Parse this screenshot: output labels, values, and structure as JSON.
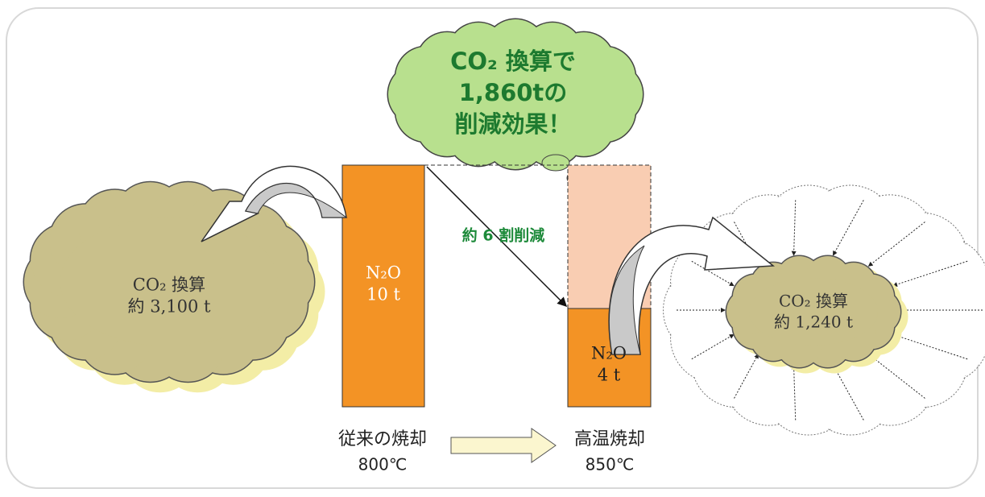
{
  "bubble": {
    "lines": [
      "CO₂ 換算で",
      "1,860tの",
      "削減効果！"
    ]
  },
  "left_cloud": {
    "lines": [
      "CO₂ 換算",
      "約 3,100 t"
    ]
  },
  "before_bar": {
    "lines": [
      "N₂O",
      "10 t"
    ]
  },
  "after_bar": {
    "lines": [
      "N₂O",
      "4 t"
    ]
  },
  "right_cloud": {
    "lines": [
      "CO₂ 換算",
      "約 1,240 t"
    ]
  },
  "reduction_label": "約 6 割削減",
  "before": {
    "label": "従来の焼却",
    "temp": "800℃"
  },
  "after": {
    "label": "高温焼却",
    "temp": "850℃"
  }
}
